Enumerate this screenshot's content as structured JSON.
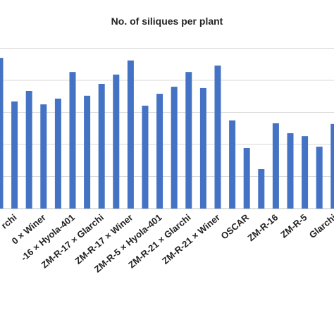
{
  "chart_data": {
    "type": "bar",
    "title": "No. of siliques per plant",
    "categories": [
      null,
      "rchi",
      null,
      "0 × Winer",
      null,
      "-16 × Hyola-401",
      null,
      "ZM-R-17 × Glarchi",
      null,
      "ZM-R-17 × Winer",
      null,
      "ZM-R-5 × Hyola-401",
      null,
      "ZM-R-21 × Glarchi",
      null,
      "ZM-R-21 × Winer",
      null,
      "OSCAR",
      null,
      "ZM-R-16",
      null,
      "ZM-R-5",
      null,
      "Glarchi"
    ],
    "values": [
      4.7,
      3.34,
      3.67,
      3.25,
      3.43,
      4.26,
      3.52,
      3.89,
      4.18,
      4.62,
      3.21,
      3.58,
      3.8,
      4.26,
      3.76,
      4.46,
      2.75,
      1.89,
      1.23,
      2.66,
      2.35,
      2.26,
      1.93,
      2.64
    ],
    "color": "#4472c4",
    "ylim": [
      0,
      5
    ],
    "yticks": [
      0,
      1,
      2,
      3,
      4,
      5
    ],
    "grid": true
  }
}
